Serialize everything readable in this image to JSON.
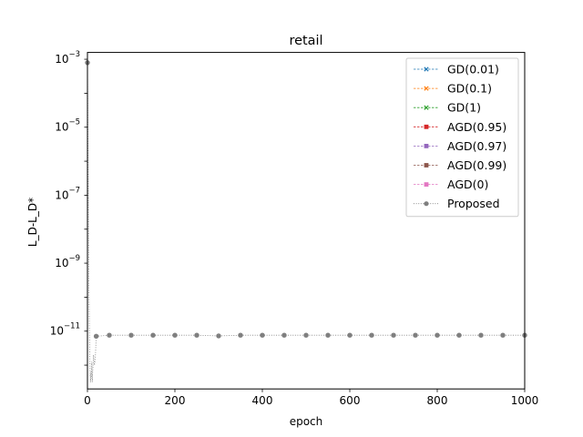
{
  "chart_data": {
    "type": "line",
    "title": "retail",
    "xlabel": "epoch",
    "ylabel": "L_D-L_D*",
    "xlim": [
      0,
      1000
    ],
    "ylim_log10": [
      -12.7,
      -2.8
    ],
    "yscale": "log",
    "grid": false,
    "legend_position": "top-right",
    "x_ticks": [
      {
        "value": 0,
        "label": "0"
      },
      {
        "value": 200,
        "label": "200"
      },
      {
        "value": 400,
        "label": "400"
      },
      {
        "value": 600,
        "label": "600"
      },
      {
        "value": 800,
        "label": "800"
      },
      {
        "value": 1000,
        "label": "1000"
      }
    ],
    "y_ticks": [
      {
        "log10": -3,
        "base": "10",
        "exp": "−3"
      },
      {
        "log10": -5,
        "base": "10",
        "exp": "−5"
      },
      {
        "log10": -7,
        "base": "10",
        "exp": "−7"
      },
      {
        "log10": -9,
        "base": "10",
        "exp": "−9"
      },
      {
        "log10": -11,
        "base": "10",
        "exp": "−11"
      }
    ],
    "series": [
      {
        "name": "GD(0.01)",
        "color": "#1f77b4",
        "marker": "x",
        "linestyle": "dashed",
        "x": [],
        "y_log10": []
      },
      {
        "name": "GD(0.1)",
        "color": "#ff7f0e",
        "marker": "x",
        "linestyle": "dashed",
        "x": [],
        "y_log10": []
      },
      {
        "name": "GD(1)",
        "color": "#2ca02c",
        "marker": "x",
        "linestyle": "dashed",
        "x": [],
        "y_log10": []
      },
      {
        "name": "AGD(0.95)",
        "color": "#d62728",
        "marker": "s",
        "linestyle": "dashed",
        "x": [],
        "y_log10": []
      },
      {
        "name": "AGD(0.97)",
        "color": "#9467bd",
        "marker": "s",
        "linestyle": "dashed",
        "x": [],
        "y_log10": []
      },
      {
        "name": "AGD(0.99)",
        "color": "#8c564b",
        "marker": "s",
        "linestyle": "dashed",
        "x": [],
        "y_log10": []
      },
      {
        "name": "AGD(0)",
        "color": "#e377c2",
        "marker": "s",
        "linestyle": "dashed",
        "x": [],
        "y_log10": []
      },
      {
        "name": "Proposed",
        "color": "#7f7f7f",
        "marker": "o",
        "linestyle": "dotted",
        "x": [
          0,
          1,
          2,
          3,
          4,
          5,
          6,
          7,
          8,
          9,
          10,
          11,
          12,
          14,
          16,
          18,
          20,
          50,
          100,
          150,
          200,
          250,
          300,
          350,
          400,
          450,
          500,
          550,
          600,
          650,
          700,
          750,
          800,
          850,
          900,
          950,
          1000
        ],
        "y_log10": [
          -3.1,
          -5.0,
          -7.2,
          -9.0,
          -10.5,
          -11.5,
          -12.2,
          -12.5,
          -12.2,
          -12.4,
          -11.9,
          -12.5,
          -12.2,
          -11.7,
          -12.0,
          -11.8,
          -11.15,
          -11.12,
          -11.12,
          -11.12,
          -11.12,
          -11.12,
          -11.14,
          -11.12,
          -11.12,
          -11.12,
          -11.12,
          -11.12,
          -11.12,
          -11.12,
          -11.12,
          -11.12,
          -11.12,
          -11.12,
          -11.12,
          -11.12,
          -11.12
        ],
        "marker_indices": [
          0,
          16,
          17,
          18,
          19,
          20,
          21,
          22,
          23,
          24,
          25,
          26,
          27,
          28,
          29,
          30,
          31,
          32,
          33,
          34,
          35,
          36
        ]
      }
    ]
  }
}
